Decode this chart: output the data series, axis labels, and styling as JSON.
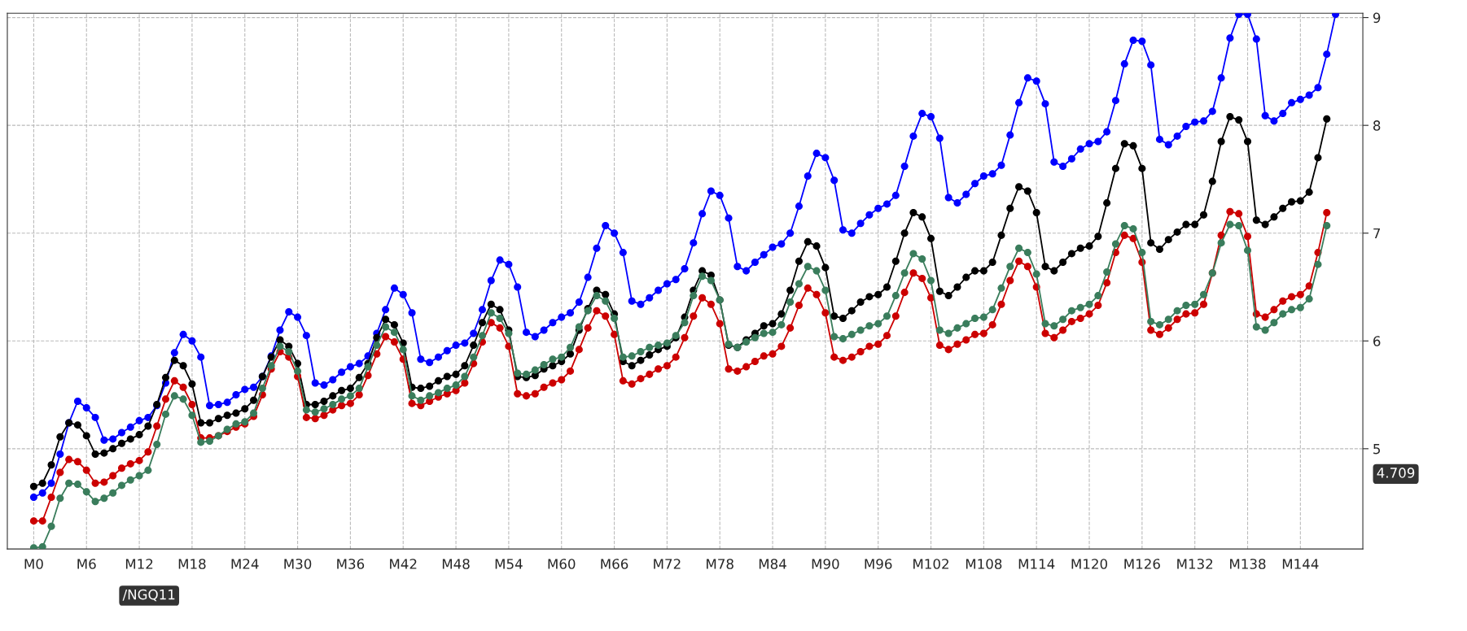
{
  "chart_data": {
    "type": "line",
    "categories": [
      "M0",
      null,
      null,
      null,
      null,
      null,
      "M6",
      null,
      null,
      null,
      null,
      null,
      "M12",
      null,
      null,
      null,
      null,
      null,
      "M18",
      null,
      null,
      null,
      null,
      null,
      "M24",
      null,
      null,
      null,
      null,
      null,
      "M30",
      null,
      null,
      null,
      null,
      null,
      "M36",
      null,
      null,
      null,
      null,
      null,
      "M42",
      null,
      null,
      null,
      null,
      null,
      "M48",
      null,
      null,
      null,
      null,
      null,
      "M54",
      null,
      null,
      null,
      null,
      null,
      "M60",
      null,
      null,
      null,
      null,
      null,
      "M66",
      null,
      null,
      null,
      null,
      null,
      "M72",
      null,
      null,
      null,
      null,
      null,
      "M78",
      null,
      null,
      null,
      null,
      null,
      "M84",
      null,
      null,
      null,
      null,
      null,
      "M90",
      null,
      null,
      null,
      null,
      null,
      "M96",
      null,
      null,
      null,
      null,
      null,
      "M102",
      null,
      null,
      null,
      null,
      null,
      "M108",
      null,
      null,
      null,
      null,
      null,
      "M114",
      null,
      null,
      null,
      null,
      null,
      "M120",
      null,
      null,
      null,
      null,
      null,
      "M126",
      null,
      null,
      null,
      null,
      null,
      "M132",
      null,
      null,
      null,
      null,
      null,
      "M138",
      null,
      null,
      null,
      null,
      null,
      "M144",
      null,
      null,
      null,
      null
    ],
    "series": [
      {
        "color": "#0000ff",
        "values": [
          4.55,
          4.59,
          4.68,
          4.95,
          5.24,
          5.44,
          5.38,
          5.29,
          5.08,
          5.09,
          5.15,
          5.2,
          5.26,
          5.29,
          5.4,
          5.61,
          5.89,
          6.06,
          6.0,
          5.85,
          5.4,
          5.41,
          5.43,
          5.5,
          5.55,
          5.57,
          5.67,
          5.86,
          6.1,
          6.27,
          6.22,
          6.05,
          5.61,
          5.59,
          5.64,
          5.71,
          5.76,
          5.79,
          5.86,
          6.07,
          6.29,
          6.49,
          6.43,
          6.26,
          5.83,
          5.8,
          5.85,
          5.91,
          5.96,
          5.98,
          6.07,
          6.29,
          6.56,
          6.75,
          6.71,
          6.5,
          6.08,
          6.04,
          6.1,
          6.17,
          6.22,
          6.26,
          6.36,
          6.59,
          6.86,
          7.07,
          7.0,
          6.82,
          6.37,
          6.34,
          6.4,
          6.47,
          6.53,
          6.57,
          6.67,
          6.91,
          7.18,
          7.39,
          7.35,
          7.14,
          6.69,
          6.65,
          6.73,
          6.8,
          6.87,
          6.9,
          7.0,
          7.25,
          7.53,
          7.74,
          7.7,
          7.49,
          7.03,
          7.0,
          7.09,
          7.17,
          7.23,
          7.27,
          7.35,
          7.62,
          7.9,
          8.11,
          8.08,
          7.88,
          7.33,
          7.28,
          7.36,
          7.46,
          7.53,
          7.55,
          7.63,
          7.91,
          8.21,
          8.44,
          8.41,
          8.2,
          7.66,
          7.62,
          7.69,
          7.78,
          7.83,
          7.85,
          7.94,
          8.23,
          8.57,
          8.79,
          8.78,
          8.56,
          7.87,
          7.82,
          7.9,
          7.99,
          8.03,
          8.04,
          8.13,
          8.44,
          8.81,
          9.03,
          9.03,
          8.8,
          8.09,
          8.04,
          8.11,
          8.21,
          8.24,
          8.28,
          8.35,
          8.66,
          9.03
        ]
      },
      {
        "color": "#000000",
        "values": [
          4.65,
          4.68,
          4.85,
          5.11,
          5.24,
          5.22,
          5.12,
          4.95,
          4.96,
          5.0,
          5.05,
          5.09,
          5.13,
          5.21,
          5.41,
          5.66,
          5.82,
          5.77,
          5.6,
          5.24,
          5.24,
          5.28,
          5.31,
          5.33,
          5.37,
          5.45,
          5.67,
          5.85,
          6.01,
          5.95,
          5.79,
          5.41,
          5.41,
          5.44,
          5.49,
          5.54,
          5.56,
          5.66,
          5.79,
          6.03,
          6.2,
          6.15,
          5.98,
          5.57,
          5.56,
          5.58,
          5.63,
          5.67,
          5.69,
          5.77,
          5.96,
          6.17,
          6.34,
          6.29,
          6.1,
          5.67,
          5.66,
          5.68,
          5.74,
          5.77,
          5.81,
          5.88,
          6.1,
          6.3,
          6.47,
          6.43,
          6.25,
          5.81,
          5.77,
          5.82,
          5.87,
          5.92,
          5.95,
          6.03,
          6.22,
          6.47,
          6.65,
          6.61,
          6.38,
          5.96,
          5.94,
          6.01,
          6.07,
          6.14,
          6.16,
          6.25,
          6.47,
          6.74,
          6.92,
          6.88,
          6.68,
          6.23,
          6.21,
          6.28,
          6.36,
          6.41,
          6.43,
          6.5,
          6.74,
          7.0,
          7.19,
          7.15,
          6.95,
          6.46,
          6.42,
          6.5,
          6.59,
          6.65,
          6.65,
          6.73,
          6.98,
          7.23,
          7.43,
          7.39,
          7.19,
          6.69,
          6.65,
          6.73,
          6.81,
          6.86,
          6.88,
          6.97,
          7.28,
          7.6,
          7.83,
          7.81,
          7.6,
          6.91,
          6.85,
          6.94,
          7.01,
          7.08,
          7.08,
          7.17,
          7.48,
          7.85,
          8.08,
          8.05,
          7.85,
          7.12,
          7.08,
          7.15,
          7.23,
          7.29,
          7.3,
          7.38,
          7.7,
          8.06,
          null
        ]
      },
      {
        "color": "#cc0000",
        "values": [
          4.33,
          4.33,
          4.55,
          4.78,
          4.9,
          4.88,
          4.8,
          4.68,
          4.69,
          4.75,
          4.82,
          4.86,
          4.89,
          4.97,
          5.21,
          5.46,
          5.63,
          5.57,
          5.41,
          5.1,
          5.1,
          5.12,
          5.16,
          5.2,
          5.23,
          5.3,
          5.5,
          5.74,
          5.9,
          5.85,
          5.67,
          5.29,
          5.28,
          5.31,
          5.36,
          5.4,
          5.42,
          5.5,
          5.68,
          5.88,
          6.04,
          5.99,
          5.83,
          5.42,
          5.4,
          5.44,
          5.48,
          5.51,
          5.54,
          5.61,
          5.79,
          5.99,
          6.17,
          6.12,
          5.95,
          5.51,
          5.49,
          5.51,
          5.57,
          5.61,
          5.64,
          5.72,
          5.92,
          6.12,
          6.28,
          6.23,
          6.06,
          5.63,
          5.6,
          5.65,
          5.69,
          5.74,
          5.77,
          5.85,
          6.03,
          6.23,
          6.4,
          6.34,
          6.16,
          5.74,
          5.72,
          5.76,
          5.81,
          5.86,
          5.88,
          5.95,
          6.12,
          6.33,
          6.49,
          6.43,
          6.26,
          5.85,
          5.82,
          5.85,
          5.9,
          5.95,
          5.97,
          6.05,
          6.23,
          6.45,
          6.63,
          6.58,
          6.4,
          5.96,
          5.92,
          5.97,
          6.01,
          6.06,
          6.07,
          6.15,
          6.34,
          6.56,
          6.74,
          6.69,
          6.5,
          6.07,
          6.03,
          6.1,
          6.18,
          6.21,
          6.25,
          6.33,
          6.54,
          6.82,
          6.98,
          6.95,
          6.73,
          6.1,
          6.06,
          6.12,
          6.2,
          6.25,
          6.26,
          6.34,
          6.63,
          6.98,
          7.2,
          7.18,
          6.97,
          6.25,
          6.22,
          6.29,
          6.37,
          6.41,
          6.43,
          6.51,
          6.82,
          7.19,
          null
        ]
      },
      {
        "color": "#3a7d5c",
        "values": [
          4.08,
          4.09,
          4.28,
          4.54,
          4.68,
          4.67,
          4.6,
          4.51,
          4.54,
          4.59,
          4.66,
          4.71,
          4.75,
          4.8,
          5.04,
          5.32,
          5.49,
          5.46,
          5.31,
          5.06,
          5.07,
          5.12,
          5.18,
          5.23,
          5.25,
          5.33,
          5.56,
          5.77,
          5.95,
          5.9,
          5.72,
          5.36,
          5.34,
          5.37,
          5.41,
          5.46,
          5.49,
          5.56,
          5.76,
          5.96,
          6.13,
          6.08,
          5.92,
          5.49,
          5.45,
          5.49,
          5.52,
          5.56,
          5.59,
          5.67,
          5.85,
          6.05,
          6.26,
          6.21,
          6.07,
          5.7,
          5.69,
          5.73,
          5.78,
          5.83,
          5.85,
          5.94,
          6.13,
          6.28,
          6.42,
          6.37,
          6.21,
          5.85,
          5.86,
          5.9,
          5.94,
          5.96,
          5.98,
          6.05,
          6.17,
          6.42,
          6.6,
          6.56,
          6.38,
          5.97,
          5.94,
          5.99,
          6.03,
          6.07,
          6.08,
          6.15,
          6.36,
          6.53,
          6.69,
          6.65,
          6.47,
          6.04,
          6.02,
          6.06,
          6.1,
          6.14,
          6.16,
          6.23,
          6.42,
          6.63,
          6.81,
          6.76,
          6.56,
          6.1,
          6.07,
          6.12,
          6.16,
          6.21,
          6.22,
          6.29,
          6.49,
          6.69,
          6.86,
          6.82,
          6.62,
          6.16,
          6.14,
          6.2,
          6.28,
          6.31,
          6.34,
          6.42,
          6.64,
          6.9,
          7.07,
          7.04,
          6.82,
          6.18,
          6.15,
          6.2,
          6.28,
          6.33,
          6.34,
          6.43,
          6.63,
          6.91,
          7.08,
          7.07,
          6.84,
          6.13,
          6.1,
          6.17,
          6.25,
          6.29,
          6.31,
          6.39,
          6.71,
          7.07,
          null
        ]
      }
    ],
    "ylim": [
      4.07,
      9.04
    ],
    "yticks": [
      5,
      6,
      7,
      8,
      9
    ],
    "grid": true,
    "marker": "circle",
    "line_style": "solid",
    "annotations": [
      "/NGQ11",
      "4.709"
    ]
  }
}
